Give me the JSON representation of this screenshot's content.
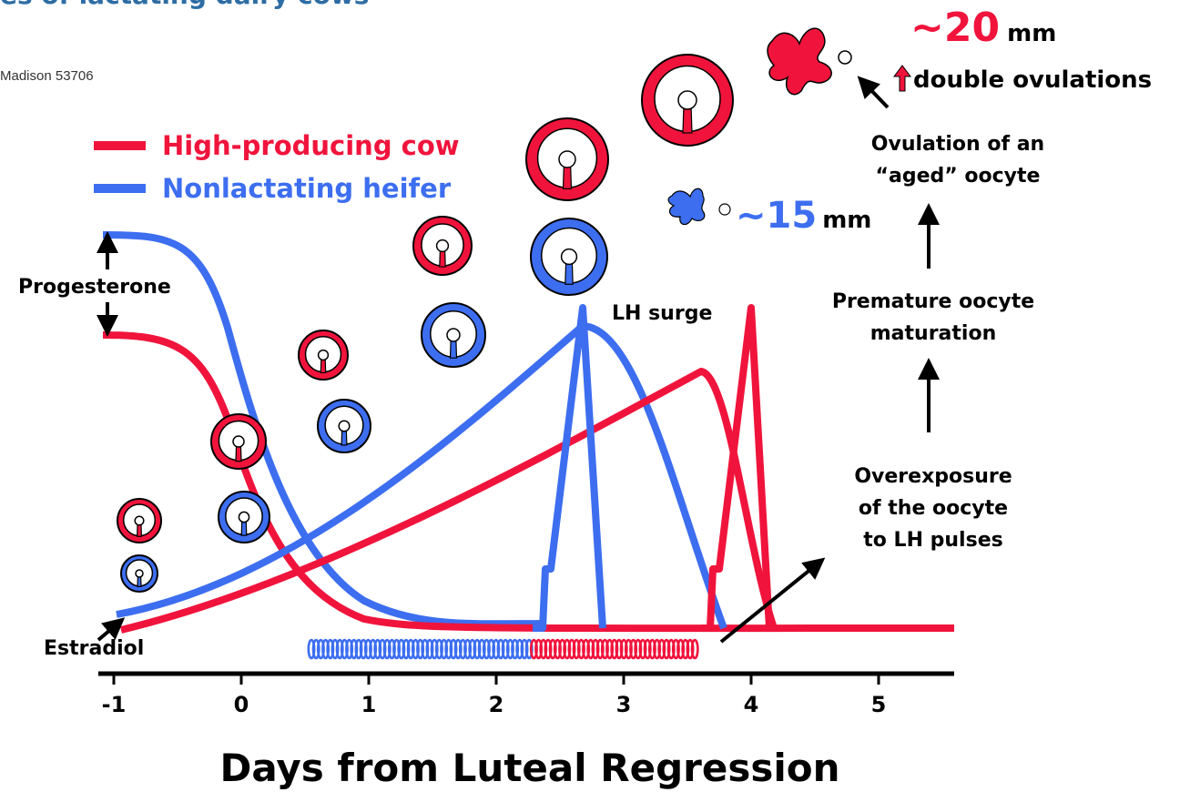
{
  "header": {
    "title_fragment": "es of lactating dairy cows",
    "address_fragment": "Madison 53706"
  },
  "legend": {
    "items": [
      "High-producing cow",
      "Nonlactating heifer"
    ]
  },
  "labels": {
    "progesterone": "Progesterone",
    "estradiol": "Estradiol",
    "lh_surge": "LH surge"
  },
  "cow_size": {
    "value": "~20",
    "unit": "mm",
    "note": "double ovulations"
  },
  "heifer_size": {
    "value": "~15",
    "unit": "mm"
  },
  "steps": [
    [
      "Ovulation of an",
      "“aged” oocyte"
    ],
    [
      "Premature oocyte",
      "maturation"
    ],
    [
      "Overexposure",
      "of the oocyte",
      "to LH pulses"
    ]
  ],
  "x_axis": {
    "ticks": [
      "-1",
      "0",
      "1",
      "2",
      "3",
      "4",
      "5"
    ],
    "title": "Days from Luteal Regression"
  }
}
